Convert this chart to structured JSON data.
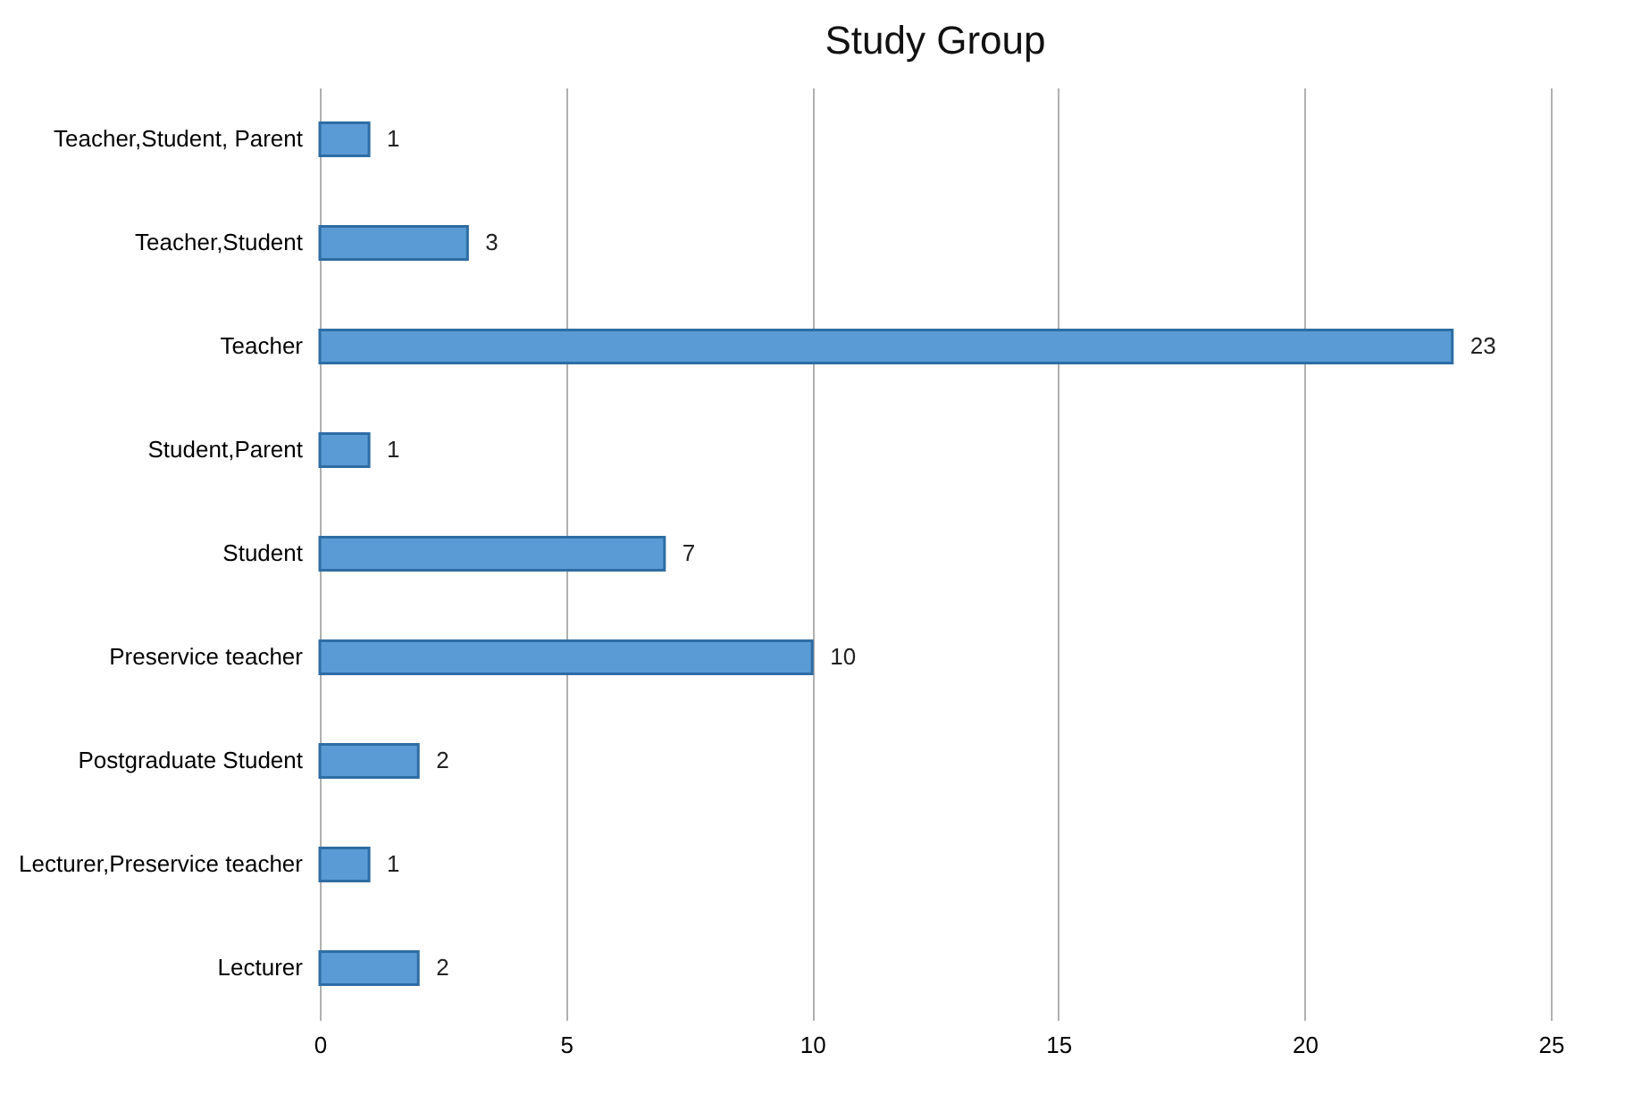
{
  "chart_data": {
    "type": "bar",
    "title": "Study Group",
    "orientation": "horizontal",
    "categories": [
      "Teacher,Student, Parent",
      "Teacher,Student",
      "Teacher",
      "Student,Parent",
      "Student",
      "Preservice teacher",
      "Postgraduate Student",
      "Lecturer,Preservice teacher",
      "Lecturer"
    ],
    "values": [
      1,
      3,
      23,
      1,
      7,
      10,
      2,
      1,
      2
    ],
    "color": "#5b9bd5",
    "xlim": [
      0,
      25
    ],
    "xticks": [
      0,
      5,
      10,
      15,
      20,
      25
    ],
    "grid": "x",
    "data_labels": true
  }
}
